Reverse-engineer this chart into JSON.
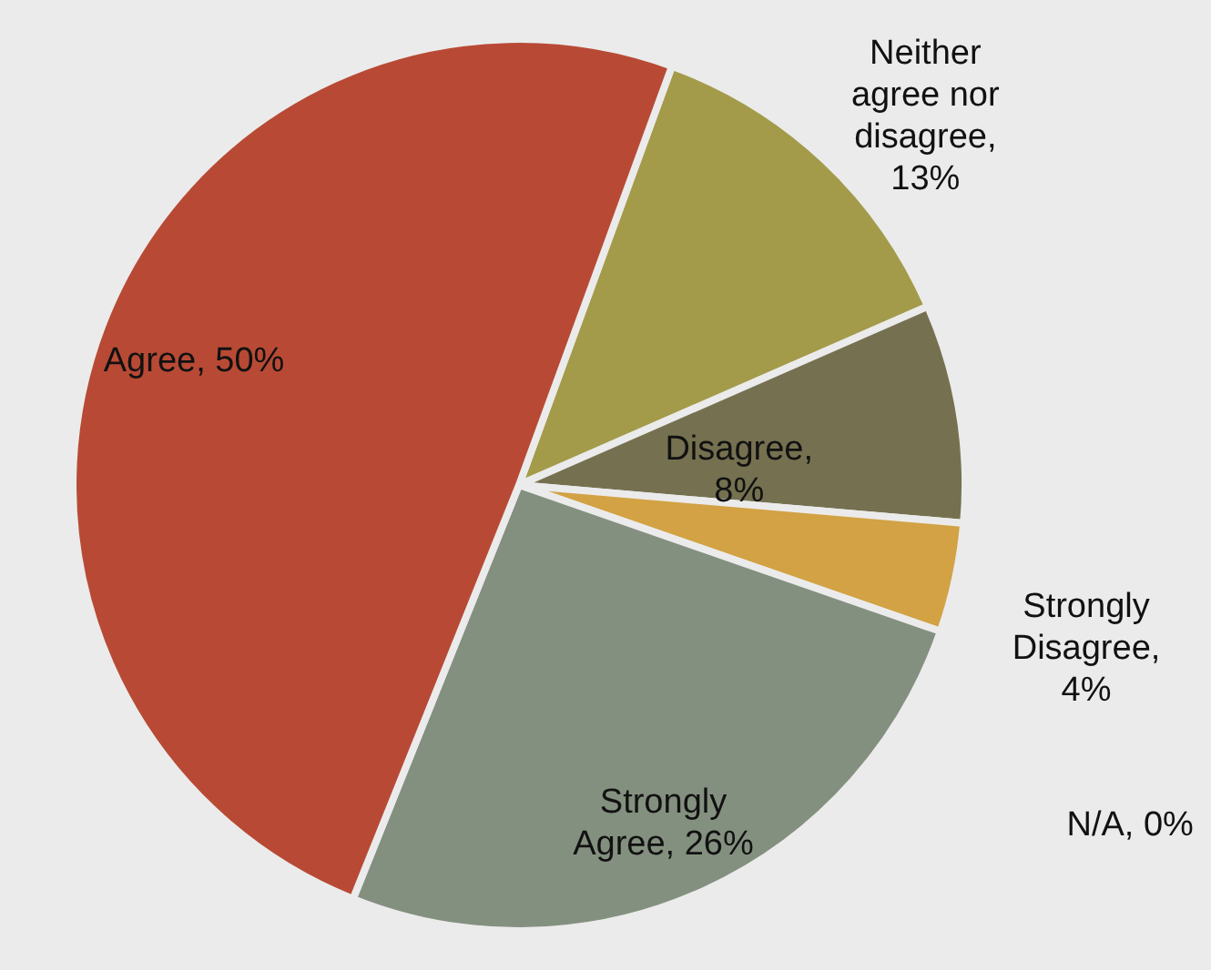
{
  "chart_data": {
    "type": "pie",
    "categories": [
      "Neither agree nor disagree",
      "Disagree",
      "Strongly Disagree",
      "N/A",
      "Strongly Agree",
      "Agree"
    ],
    "values": [
      13,
      8,
      4,
      0,
      26,
      50
    ],
    "colors": [
      "#a39b4a",
      "#757150",
      "#d2a244",
      "#5f6a5a",
      "#84907f",
      "#b84a35"
    ],
    "value_labels": [
      ", 13%",
      ", 8%",
      ", 4%",
      ", 0%",
      ", 26%",
      ", 50%"
    ]
  }
}
